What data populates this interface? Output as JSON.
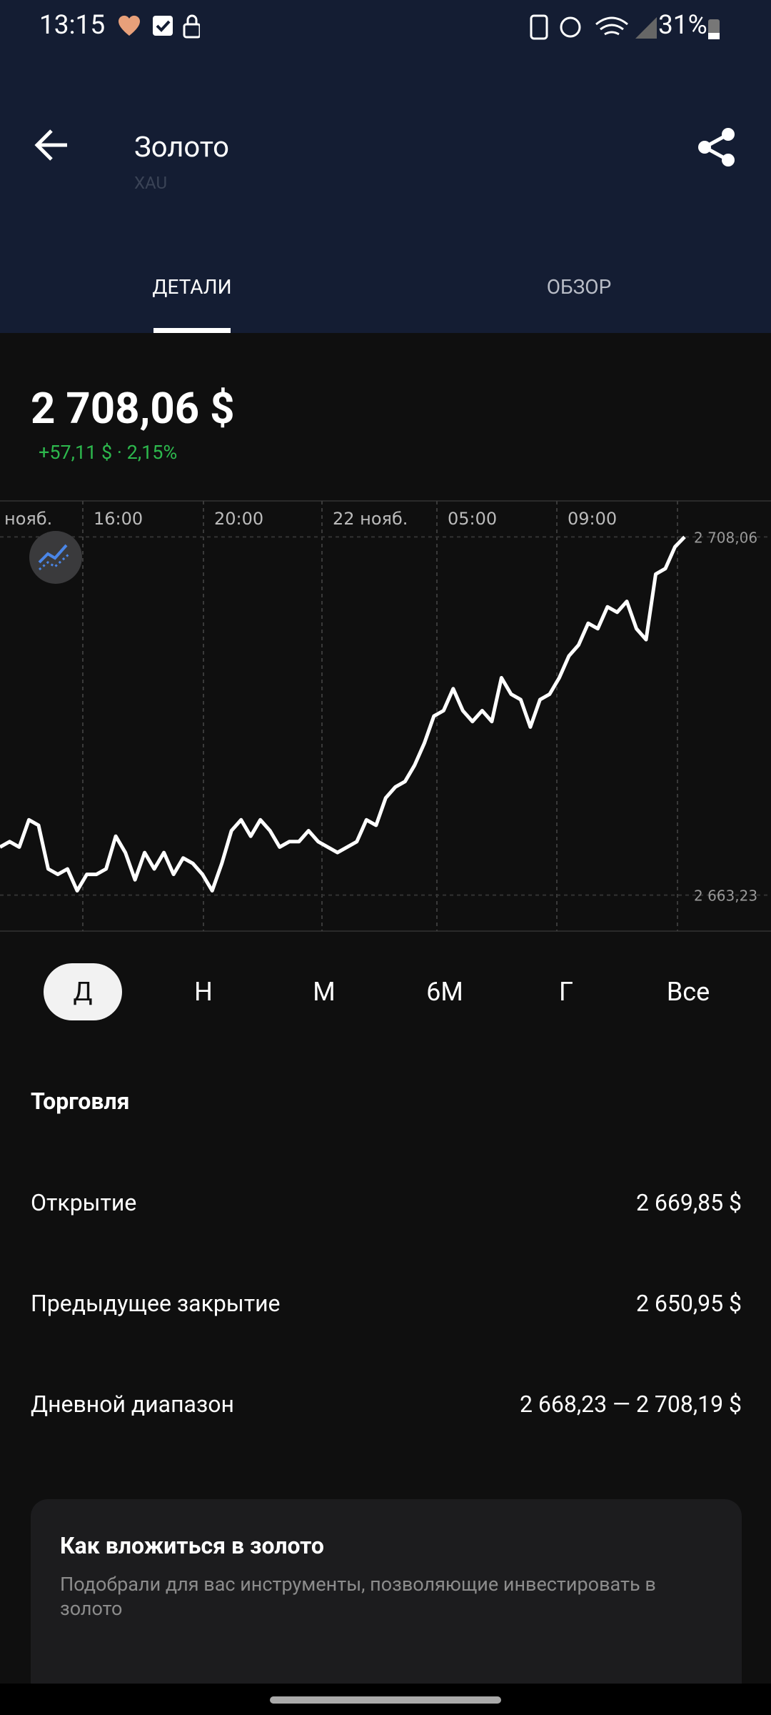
{
  "status_bar": {
    "time": "13:15",
    "battery": "31%"
  },
  "header": {
    "title": "Золото",
    "subtitle": "XAU"
  },
  "tabs": [
    {
      "label": "ДЕТАЛИ",
      "selected": true
    },
    {
      "label": "ОБЗОР",
      "selected": false
    }
  ],
  "price": {
    "value": "2 708,06 $",
    "change": "+57,11 $ · 2,15%"
  },
  "chart_data": {
    "type": "line",
    "color": "#ffffff",
    "x_labels": [
      "нояб.",
      "16:00",
      "20:00",
      "22 нояб.",
      "05:00",
      "09:00"
    ],
    "values": [
      2669.24,
      2669.92,
      2669.24,
      2672.65,
      2671.97,
      2666.5,
      2665.82,
      2666.5,
      2663.77,
      2665.82,
      2665.82,
      2666.5,
      2670.6,
      2668.55,
      2665.14,
      2668.55,
      2666.5,
      2668.55,
      2665.82,
      2667.87,
      2667.19,
      2665.82,
      2663.77,
      2667.19,
      2671.29,
      2672.65,
      2670.6,
      2672.65,
      2671.29,
      2669.24,
      2669.92,
      2669.92,
      2671.29,
      2669.92,
      2669.24,
      2668.55,
      2669.24,
      2669.92,
      2672.65,
      2671.97,
      2675.39,
      2676.76,
      2677.44,
      2679.49,
      2682.22,
      2685.64,
      2686.32,
      2689.06,
      2686.32,
      2684.96,
      2686.32,
      2684.96,
      2690.43,
      2688.38,
      2687.69,
      2684.27,
      2687.69,
      2688.38,
      2690.43,
      2693.16,
      2694.53,
      2697.26,
      2696.58,
      2699.31,
      2698.63,
      2699.99,
      2696.58,
      2695.21,
      2703.41,
      2704.1,
      2706.83,
      2708.06
    ],
    "ylim": [
      2658.72,
      2712.57
    ],
    "yticks": [
      {
        "value": 2708.06,
        "label": "2 708,06"
      },
      {
        "value": 2663.23,
        "label": "2 663,23"
      }
    ]
  },
  "periods": {
    "options": [
      "Д",
      "Н",
      "М",
      "6М",
      "Г",
      "Все"
    ],
    "selected": 0
  },
  "trading": {
    "title": "Торговля",
    "rows": [
      {
        "label": "Открытие",
        "value": "2 669,85 $"
      },
      {
        "label": "Предыдущее закрытие",
        "value": "2 650,95 $"
      },
      {
        "label": "Дневной диапазон",
        "value": "2 668,23 — 2 708,19 $"
      }
    ]
  },
  "card": {
    "title": "Как вложиться в золото",
    "text": "Подобрали для вас инструменты, позволяющие инвестировать в золото"
  }
}
